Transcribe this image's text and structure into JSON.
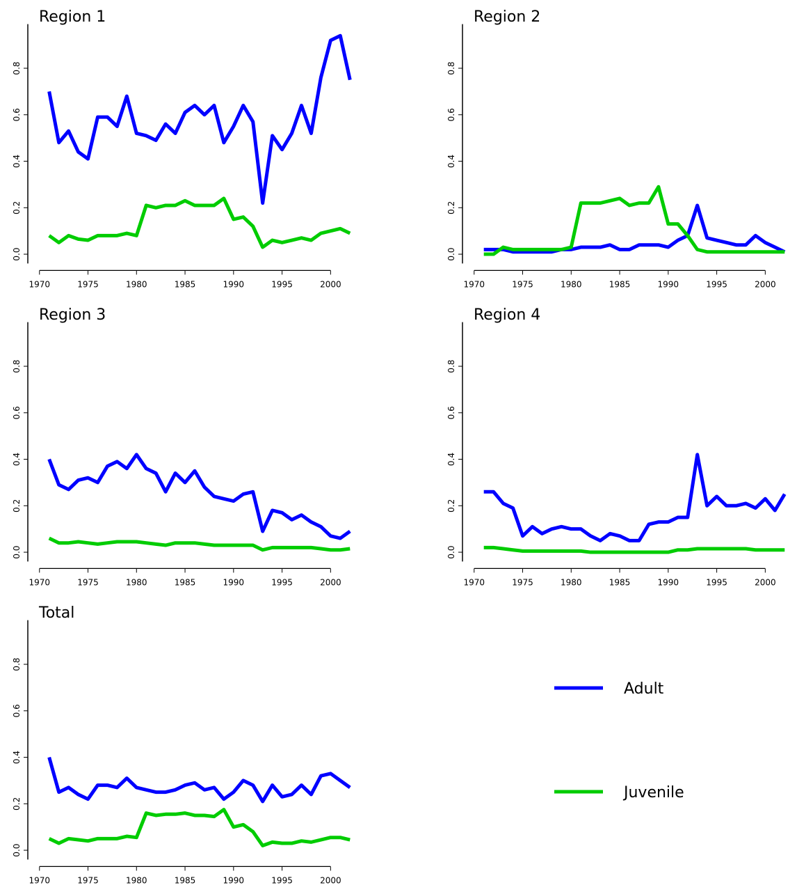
{
  "chart_data": [
    {
      "type": "line",
      "title": "Region 1",
      "x": [
        1971,
        1972,
        1973,
        1974,
        1975,
        1976,
        1977,
        1978,
        1979,
        1980,
        1981,
        1982,
        1983,
        1984,
        1985,
        1986,
        1987,
        1988,
        1989,
        1990,
        1991,
        1992,
        1993,
        1994,
        1995,
        1996,
        1997,
        1998,
        1999,
        2000,
        2001,
        2002
      ],
      "series": [
        {
          "name": "Adult",
          "color": "#0000ff",
          "values": [
            0.7,
            0.48,
            0.53,
            0.44,
            0.41,
            0.59,
            0.59,
            0.55,
            0.68,
            0.52,
            0.51,
            0.49,
            0.56,
            0.52,
            0.61,
            0.64,
            0.6,
            0.64,
            0.48,
            0.55,
            0.64,
            0.57,
            0.22,
            0.51,
            0.45,
            0.52,
            0.64,
            0.52,
            0.76,
            0.92,
            0.94,
            0.75
          ]
        },
        {
          "name": "Juvenile",
          "color": "#00cc00",
          "values": [
            0.08,
            0.05,
            0.08,
            0.065,
            0.06,
            0.08,
            0.08,
            0.08,
            0.09,
            0.08,
            0.21,
            0.2,
            0.21,
            0.21,
            0.23,
            0.21,
            0.21,
            0.21,
            0.24,
            0.15,
            0.16,
            0.12,
            0.03,
            0.06,
            0.05,
            0.06,
            0.07,
            0.06,
            0.09,
            0.1,
            0.11,
            0.09
          ]
        }
      ],
      "xlim": [
        1968.8,
        2003.2
      ],
      "ylim": [
        -0.04,
        0.99
      ],
      "xticks": [
        1970,
        1975,
        1980,
        1985,
        1990,
        1995,
        2000
      ],
      "yticks": [
        {
          "value": 0,
          "label": "0.0"
        },
        0.2,
        0.4,
        0.6,
        0.8
      ]
    },
    {
      "type": "line",
      "title": "Region 2",
      "x": [
        1971,
        1972,
        1973,
        1974,
        1975,
        1976,
        1977,
        1978,
        1979,
        1980,
        1981,
        1982,
        1983,
        1984,
        1985,
        1986,
        1987,
        1988,
        1989,
        1990,
        1991,
        1992,
        1993,
        1994,
        1995,
        1996,
        1997,
        1998,
        1999,
        2000,
        2001,
        2002
      ],
      "series": [
        {
          "name": "Adult",
          "color": "#0000ff",
          "values": [
            0.02,
            0.02,
            0.02,
            0.01,
            0.01,
            0.01,
            0.01,
            0.01,
            0.02,
            0.02,
            0.03,
            0.03,
            0.03,
            0.04,
            0.02,
            0.02,
            0.04,
            0.04,
            0.04,
            0.03,
            0.06,
            0.08,
            0.21,
            0.07,
            0.06,
            0.05,
            0.04,
            0.04,
            0.08,
            0.05,
            0.03,
            0.01
          ]
        },
        {
          "name": "Juvenile",
          "color": "#00cc00",
          "values": [
            0.0,
            0.0,
            0.03,
            0.02,
            0.02,
            0.02,
            0.02,
            0.02,
            0.02,
            0.03,
            0.22,
            0.22,
            0.22,
            0.23,
            0.24,
            0.21,
            0.22,
            0.22,
            0.29,
            0.13,
            0.13,
            0.08,
            0.02,
            0.01,
            0.01,
            0.01,
            0.01,
            0.01,
            0.01,
            0.01,
            0.01,
            0.01
          ]
        }
      ],
      "xlim": [
        1968.8,
        2003.2
      ],
      "ylim": [
        -0.04,
        0.99
      ],
      "xticks": [
        1970,
        1975,
        1980,
        1985,
        1990,
        1995,
        2000
      ],
      "yticks": [
        {
          "value": 0,
          "label": "0.0"
        },
        0.2,
        0.4,
        0.6,
        0.8
      ]
    },
    {
      "type": "line",
      "title": "Region 3",
      "x": [
        1971,
        1972,
        1973,
        1974,
        1975,
        1976,
        1977,
        1978,
        1979,
        1980,
        1981,
        1982,
        1983,
        1984,
        1985,
        1986,
        1987,
        1988,
        1989,
        1990,
        1991,
        1992,
        1993,
        1994,
        1995,
        1996,
        1997,
        1998,
        1999,
        2000,
        2001,
        2002
      ],
      "series": [
        {
          "name": "Adult",
          "color": "#0000ff",
          "values": [
            0.4,
            0.29,
            0.27,
            0.31,
            0.32,
            0.3,
            0.37,
            0.39,
            0.36,
            0.42,
            0.36,
            0.34,
            0.26,
            0.34,
            0.3,
            0.35,
            0.28,
            0.24,
            0.23,
            0.22,
            0.25,
            0.26,
            0.09,
            0.18,
            0.17,
            0.14,
            0.16,
            0.13,
            0.11,
            0.07,
            0.06,
            0.09
          ]
        },
        {
          "name": "Juvenile",
          "color": "#00cc00",
          "values": [
            0.06,
            0.04,
            0.04,
            0.045,
            0.04,
            0.035,
            0.04,
            0.045,
            0.045,
            0.045,
            0.04,
            0.035,
            0.03,
            0.04,
            0.04,
            0.04,
            0.035,
            0.03,
            0.03,
            0.03,
            0.03,
            0.03,
            0.01,
            0.02,
            0.02,
            0.02,
            0.02,
            0.02,
            0.015,
            0.01,
            0.01,
            0.015
          ]
        }
      ],
      "xlim": [
        1968.8,
        2003.2
      ],
      "ylim": [
        -0.04,
        0.99
      ],
      "xticks": [
        1970,
        1975,
        1980,
        1985,
        1990,
        1995,
        2000
      ],
      "yticks": [
        {
          "value": 0,
          "label": "0.0"
        },
        0.2,
        0.4,
        0.6,
        0.8
      ]
    },
    {
      "type": "line",
      "title": "Region 4",
      "x": [
        1971,
        1972,
        1973,
        1974,
        1975,
        1976,
        1977,
        1978,
        1979,
        1980,
        1981,
        1982,
        1983,
        1984,
        1985,
        1986,
        1987,
        1988,
        1989,
        1990,
        1991,
        1992,
        1993,
        1994,
        1995,
        1996,
        1997,
        1998,
        1999,
        2000,
        2001,
        2002
      ],
      "series": [
        {
          "name": "Adult",
          "color": "#0000ff",
          "values": [
            0.26,
            0.26,
            0.21,
            0.19,
            0.07,
            0.11,
            0.08,
            0.1,
            0.11,
            0.1,
            0.1,
            0.07,
            0.05,
            0.08,
            0.07,
            0.05,
            0.05,
            0.12,
            0.13,
            0.13,
            0.15,
            0.15,
            0.42,
            0.2,
            0.24,
            0.2,
            0.2,
            0.21,
            0.19,
            0.23,
            0.18,
            0.25
          ]
        },
        {
          "name": "Juvenile",
          "color": "#00cc00",
          "values": [
            0.02,
            0.02,
            0.015,
            0.01,
            0.005,
            0.005,
            0.005,
            0.005,
            0.005,
            0.005,
            0.005,
            0.0,
            0.0,
            0.0,
            0.0,
            0.0,
            0.0,
            0.0,
            0.0,
            0.0,
            0.01,
            0.01,
            0.015,
            0.015,
            0.015,
            0.015,
            0.015,
            0.015,
            0.01,
            0.01,
            0.01,
            0.01
          ]
        }
      ],
      "xlim": [
        1968.8,
        2003.2
      ],
      "ylim": [
        -0.04,
        0.99
      ],
      "xticks": [
        1970,
        1975,
        1980,
        1985,
        1990,
        1995,
        2000
      ],
      "yticks": [
        {
          "value": 0,
          "label": "0.0"
        },
        0.2,
        0.4,
        0.6,
        0.8
      ]
    },
    {
      "type": "line",
      "title": "Total",
      "x": [
        1971,
        1972,
        1973,
        1974,
        1975,
        1976,
        1977,
        1978,
        1979,
        1980,
        1981,
        1982,
        1983,
        1984,
        1985,
        1986,
        1987,
        1988,
        1989,
        1990,
        1991,
        1992,
        1993,
        1994,
        1995,
        1996,
        1997,
        1998,
        1999,
        2000,
        2001,
        2002
      ],
      "series": [
        {
          "name": "Adult",
          "color": "#0000ff",
          "values": [
            0.4,
            0.25,
            0.27,
            0.24,
            0.22,
            0.28,
            0.28,
            0.27,
            0.31,
            0.27,
            0.26,
            0.25,
            0.25,
            0.26,
            0.28,
            0.29,
            0.26,
            0.27,
            0.22,
            0.25,
            0.3,
            0.28,
            0.21,
            0.28,
            0.23,
            0.24,
            0.28,
            0.24,
            0.32,
            0.33,
            0.3,
            0.27
          ]
        },
        {
          "name": "Juvenile",
          "color": "#00cc00",
          "values": [
            0.05,
            0.03,
            0.05,
            0.045,
            0.04,
            0.05,
            0.05,
            0.05,
            0.06,
            0.055,
            0.16,
            0.15,
            0.155,
            0.155,
            0.16,
            0.15,
            0.15,
            0.145,
            0.175,
            0.1,
            0.11,
            0.08,
            0.02,
            0.035,
            0.03,
            0.03,
            0.04,
            0.035,
            0.045,
            0.055,
            0.055,
            0.045
          ]
        }
      ],
      "xlim": [
        1968.8,
        2003.2
      ],
      "ylim": [
        -0.04,
        0.99
      ],
      "xticks": [
        1970,
        1975,
        1980,
        1985,
        1990,
        1995,
        2000
      ],
      "yticks": [
        {
          "value": 0,
          "label": "0.0"
        },
        0.2,
        0.4,
        0.6,
        0.8
      ],
      "legend": "right"
    }
  ]
}
